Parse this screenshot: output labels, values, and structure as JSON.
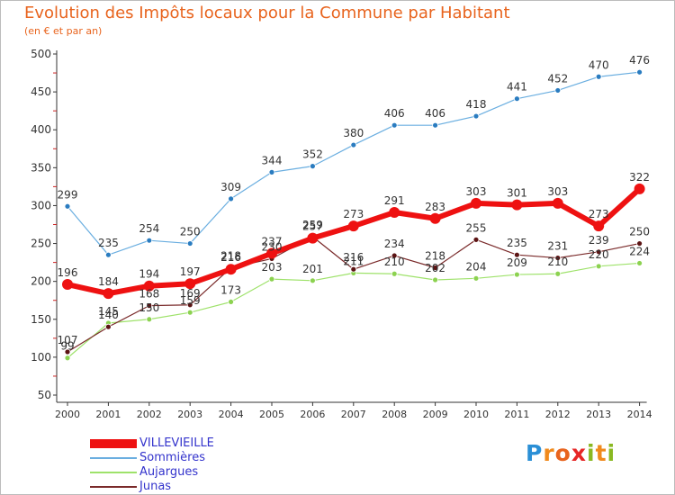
{
  "title": "Evolution des Impôts locaux pour la Commune par Habitant",
  "subtitle": "(en € et par an)",
  "logo": {
    "letters": [
      "P",
      "r",
      "o",
      "x",
      "i",
      "t",
      "i"
    ],
    "colors": [
      "#2a8fd6",
      "#f08a1d",
      "#e8641e",
      "#e62626",
      "#8ab821",
      "#f08a1d",
      "#8ab821"
    ]
  },
  "chart_data": {
    "type": "line",
    "title": "Evolution des Impôts locaux pour la Commune par Habitant",
    "subtitle": "(en € et par an)",
    "x": [
      "2000",
      "2001",
      "2002",
      "2003",
      "2004",
      "2005",
      "2006",
      "2007",
      "2008",
      "2009",
      "2010",
      "2011",
      "2012",
      "2013",
      "2014"
    ],
    "ylim": [
      50,
      500
    ],
    "yticks": [
      50,
      100,
      150,
      200,
      250,
      300,
      350,
      400,
      450,
      500
    ],
    "grid": false,
    "legend_position": "bottom-left",
    "series": [
      {
        "name": "Aujargues",
        "color": "#9ee26a",
        "marker": "#8cd250",
        "width": 1.2,
        "r": 3,
        "labels": true,
        "values": [
          99,
          145,
          150,
          159,
          173,
          203,
          201,
          211,
          210,
          202,
          204,
          209,
          210,
          220,
          224
        ]
      },
      {
        "name": "Junas",
        "color": "#7a2a2a",
        "marker": "#5c1414",
        "width": 1.2,
        "r": 3,
        "labels": true,
        "values": [
          107,
          140,
          168,
          169,
          218,
          230,
          259,
          216,
          234,
          218,
          255,
          235,
          231,
          239,
          250
        ]
      },
      {
        "name": "Sommières",
        "color": "#6aaee0",
        "marker": "#2a7cc0",
        "width": 1.2,
        "r": 3,
        "labels": true,
        "values": [
          299,
          235,
          254,
          250,
          309,
          344,
          352,
          380,
          406,
          406,
          418,
          441,
          452,
          470,
          476
        ]
      },
      {
        "name": "VILLEVIEILLE",
        "color": "#ee1111",
        "marker": "#ee1111",
        "width": 6,
        "r": 6,
        "labels": true,
        "values": [
          196,
          184,
          194,
          197,
          216,
          237,
          257,
          273,
          291,
          283,
          303,
          301,
          303,
          273,
          322
        ]
      }
    ],
    "legend_order": [
      "VILLEVIEILLE",
      "Sommières",
      "Aujargues",
      "Junas"
    ],
    "legend_label_colors": {
      "VILLEVIEILLE": "#3333cc",
      "Sommières": "#3333cc",
      "Aujargues": "#3333cc",
      "Junas": "#3333cc"
    }
  }
}
